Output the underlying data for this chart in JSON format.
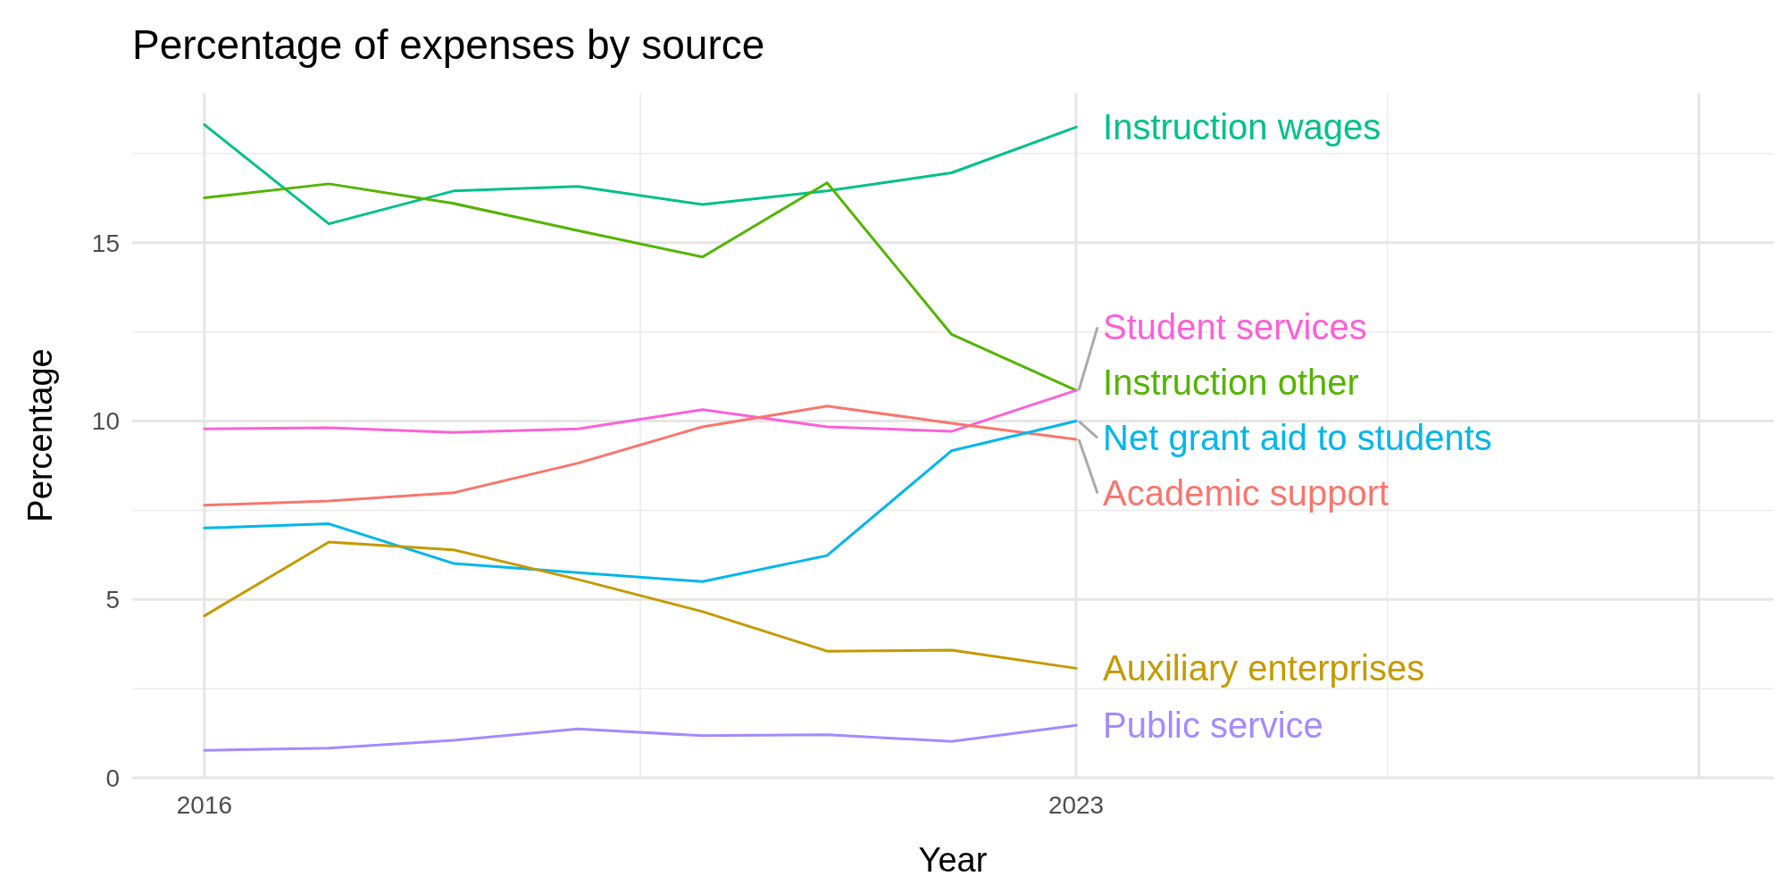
{
  "chart_data": {
    "type": "line",
    "title": "Percentage of expenses by source",
    "xlabel": "Year",
    "ylabel": "Percentage",
    "x": [
      2016,
      2017,
      2018,
      2019,
      2020,
      2021,
      2022,
      2023
    ],
    "series": [
      {
        "name": "Instruction wages",
        "color": "#00c08b",
        "values": [
          18.31,
          15.53,
          16.45,
          16.58,
          16.07,
          16.45,
          16.96,
          18.24
        ]
      },
      {
        "name": "Instruction other",
        "color": "#53b400",
        "values": [
          16.26,
          16.65,
          16.1,
          15.34,
          14.6,
          16.68,
          12.43,
          10.86
        ]
      },
      {
        "name": "Student services",
        "color": "#fb61d7",
        "values": [
          9.78,
          9.81,
          9.68,
          9.78,
          10.32,
          9.84,
          9.71,
          10.86
        ]
      },
      {
        "name": "Academic support",
        "color": "#f8766d",
        "values": [
          7.64,
          7.76,
          7.99,
          8.82,
          9.84,
          10.42,
          9.94,
          9.49
        ]
      },
      {
        "name": "Net grant aid to students",
        "color": "#00b6eb",
        "values": [
          7.0,
          7.12,
          6.01,
          5.75,
          5.5,
          6.23,
          9.17,
          10.0
        ]
      },
      {
        "name": "Auxiliary enterprises",
        "color": "#c49a00",
        "values": [
          4.54,
          6.61,
          6.39,
          5.56,
          4.66,
          3.55,
          3.58,
          3.07
        ]
      },
      {
        "name": "Public service",
        "color": "#a58aff",
        "values": [
          0.77,
          0.83,
          1.05,
          1.37,
          1.18,
          1.21,
          1.02,
          1.47
        ]
      }
    ],
    "xlim": [
      2015.42,
      2028.6
    ],
    "ylim": [
      0,
      19.2
    ],
    "xticks": [
      2016,
      2023,
      {
        "value": 2028,
        "label": null
      }
    ],
    "yticks": [
      0,
      5,
      10,
      15
    ],
    "grid": true,
    "marker": "none",
    "line_style": "solid"
  }
}
